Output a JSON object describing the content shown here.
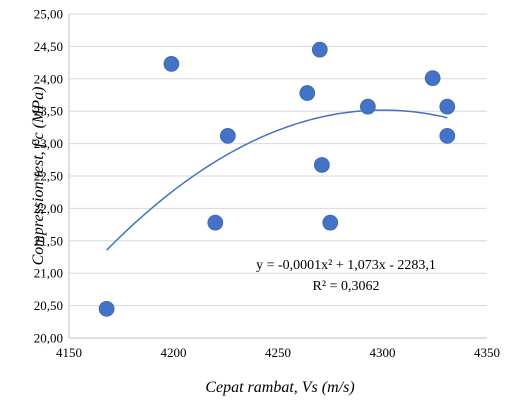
{
  "chart_data": {
    "type": "scatter",
    "xlabel": "Cepat rambat, Vs (m/s)",
    "ylabel": "Compression test, f'c (MPa)",
    "xlim": [
      4150,
      4350
    ],
    "ylim": [
      20.0,
      25.0
    ],
    "x_ticks": [
      "4150",
      "4200",
      "4250",
      "4300",
      "4350"
    ],
    "y_ticks": [
      "20,00",
      "20,50",
      "21,00",
      "21,50",
      "22,00",
      "22,50",
      "23,00",
      "23,50",
      "24,00",
      "24,50",
      "25,00"
    ],
    "x_tick_values": [
      4150,
      4200,
      4250,
      4300,
      4350
    ],
    "y_tick_values": [
      20.0,
      20.5,
      21.0,
      21.5,
      22.0,
      22.5,
      23.0,
      23.5,
      24.0,
      24.5,
      25.0
    ],
    "grid": {
      "horizontal": true,
      "vertical": false
    },
    "points": [
      {
        "x": 4168,
        "y": 20.45
      },
      {
        "x": 4199,
        "y": 24.23
      },
      {
        "x": 4220,
        "y": 21.78
      },
      {
        "x": 4226,
        "y": 23.12
      },
      {
        "x": 4264,
        "y": 23.78
      },
      {
        "x": 4270,
        "y": 24.45
      },
      {
        "x": 4271,
        "y": 22.67
      },
      {
        "x": 4275,
        "y": 21.78
      },
      {
        "x": 4293,
        "y": 23.57
      },
      {
        "x": 4324,
        "y": 24.01
      },
      {
        "x": 4331,
        "y": 23.57
      },
      {
        "x": 4331,
        "y": 23.12
      }
    ],
    "marker_color": "#4472C4",
    "trendline": {
      "type": "polynomial-2",
      "x_range": [
        4168,
        4331
      ],
      "color": "#4472C4",
      "equation": "y = -0,0001x² + 1,073x - 2283,1",
      "r_squared": "R² = 0,3062"
    }
  }
}
